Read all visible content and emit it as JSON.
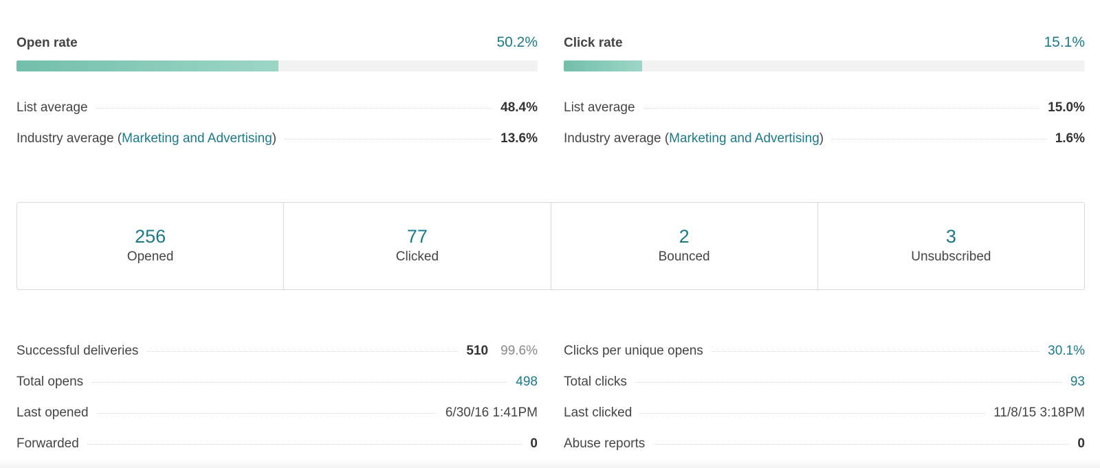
{
  "open_rate": {
    "label": "Open rate",
    "value": "50.2%",
    "fill": 0.502,
    "list_average_label": "List average",
    "list_average_value": "48.4%",
    "industry_label_prefix": "Industry average (",
    "industry_name": "Marketing and Advertising",
    "industry_label_suffix": ")",
    "industry_average_value": "13.6%"
  },
  "click_rate": {
    "label": "Click rate",
    "value": "15.1%",
    "fill": 0.151,
    "list_average_label": "List average",
    "list_average_value": "15.0%",
    "industry_label_prefix": "Industry average (",
    "industry_name": "Marketing and Advertising",
    "industry_label_suffix": ")",
    "industry_average_value": "1.6%"
  },
  "stats": [
    {
      "value": "256",
      "label": "Opened"
    },
    {
      "value": "77",
      "label": "Clicked"
    },
    {
      "value": "2",
      "label": "Bounced"
    },
    {
      "value": "3",
      "label": "Unsubscribed"
    }
  ],
  "details_left": {
    "successful_deliveries": {
      "label": "Successful deliveries",
      "value": "510",
      "percent": "99.6%"
    },
    "total_opens": {
      "label": "Total opens",
      "value": "498"
    },
    "last_opened": {
      "label": "Last opened",
      "value": "6/30/16 1:41PM"
    },
    "forwarded": {
      "label": "Forwarded",
      "value": "0"
    }
  },
  "details_right": {
    "clicks_per_unique_opens": {
      "label": "Clicks per unique opens",
      "value": "30.1%"
    },
    "total_clicks": {
      "label": "Total clicks",
      "value": "93"
    },
    "last_clicked": {
      "label": "Last clicked",
      "value": "11/8/15 3:18PM"
    },
    "abuse_reports": {
      "label": "Abuse reports",
      "value": "0"
    }
  },
  "colors": {
    "accent": "#1b7a89",
    "bar_start": "#72bfab",
    "bar_end": "#9cd6c6",
    "track": "#f2f2f2"
  }
}
